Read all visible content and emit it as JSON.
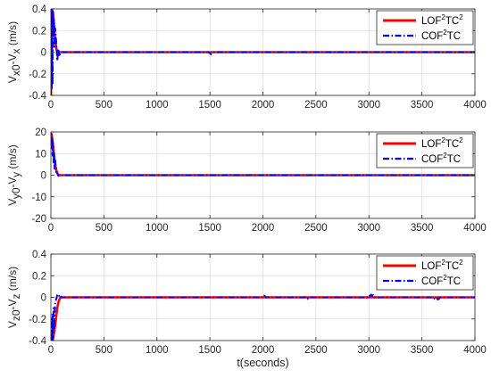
{
  "colors": {
    "lof": "#ff0000",
    "cof": "#0000ff",
    "grid": "#dedede",
    "axis": "#262626"
  },
  "legend": {
    "lof": [
      "LOF",
      "2",
      "TC",
      "2"
    ],
    "cof": [
      "COF",
      "2",
      "TC"
    ]
  },
  "chart_data": [
    {
      "type": "line",
      "ylabel": "V_x0-V_x (m/s)",
      "ylabel_parts": [
        "V",
        "x0",
        "-V",
        "x",
        " (m/s)"
      ],
      "xlim": [
        0,
        4000
      ],
      "ylim": [
        -0.4,
        0.4
      ],
      "xticks": [
        0,
        500,
        1000,
        1500,
        2000,
        2500,
        3000,
        3500,
        4000
      ],
      "yticks": [
        -0.4,
        -0.2,
        0,
        0.2,
        0.4
      ],
      "ytick_labels": [
        "-0.4",
        "-0.2",
        "0",
        "0.2",
        "0.4"
      ],
      "grid": true,
      "legend_position": "top-right",
      "series": [
        {
          "name": "LOF2TC2",
          "style": "solid",
          "x": [
            0,
            3,
            6,
            10,
            15,
            20,
            25,
            30,
            40,
            50,
            60,
            70,
            80,
            100,
            150,
            4000
          ],
          "y": [
            -0.4,
            -0.3,
            0.05,
            0.3,
            0.38,
            0.36,
            0.3,
            0.24,
            0.12,
            0.04,
            0.005,
            -0.005,
            0,
            0,
            0,
            0
          ]
        },
        {
          "name": "COF2TC",
          "style": "dashdot",
          "x": [
            0,
            5,
            8,
            12,
            16,
            20,
            25,
            30,
            35,
            40,
            50,
            60,
            70,
            80,
            90,
            100,
            150,
            1490,
            1500,
            1510,
            1520,
            1530,
            1540,
            4000
          ],
          "y": [
            -0.4,
            0.4,
            -0.35,
            0.4,
            -0.3,
            0.38,
            0.15,
            0.3,
            0.05,
            0.22,
            0.1,
            -0.08,
            0.03,
            -0.04,
            -0.01,
            0,
            0,
            0,
            -0.01,
            -0.02,
            -0.015,
            -0.01,
            0,
            0
          ]
        }
      ]
    },
    {
      "type": "line",
      "ylabel": "V_y0-V_y (m/s)",
      "ylabel_parts": [
        "V",
        "y0",
        "-V",
        "y",
        " (m/s)"
      ],
      "xlim": [
        0,
        4000
      ],
      "ylim": [
        -20,
        20
      ],
      "xticks": [
        0,
        500,
        1000,
        1500,
        2000,
        2500,
        3000,
        3500,
        4000
      ],
      "yticks": [
        -20,
        -10,
        0,
        10,
        20
      ],
      "ytick_labels": [
        "-20",
        "-10",
        "0",
        "10",
        "20"
      ],
      "grid": true,
      "legend_position": "top-right",
      "series": [
        {
          "name": "LOF2TC2",
          "style": "solid",
          "x": [
            0,
            5,
            10,
            15,
            20,
            25,
            30,
            40,
            50,
            60,
            70,
            80,
            100,
            4000
          ],
          "y": [
            19.5,
            19,
            18,
            16,
            14,
            11.5,
            9,
            5,
            2.5,
            1,
            0.2,
            0,
            0,
            0
          ]
        },
        {
          "name": "COF2TC",
          "style": "dashdot",
          "x": [
            0,
            4,
            8,
            12,
            16,
            20,
            25,
            30,
            35,
            40,
            50,
            60,
            70,
            80,
            100,
            4000
          ],
          "y": [
            15,
            19,
            12,
            17,
            9,
            15,
            6,
            11,
            3,
            7,
            1.5,
            1,
            -0.3,
            0,
            0,
            0
          ]
        }
      ]
    },
    {
      "type": "line",
      "ylabel": "V_z0-V_z (m/s)",
      "ylabel_parts": [
        "V",
        "z0",
        "-V",
        "z",
        " (m/s)"
      ],
      "xlabel": "t(seconds)",
      "xlim": [
        0,
        4000
      ],
      "ylim": [
        -0.4,
        0.4
      ],
      "xticks": [
        0,
        500,
        1000,
        1500,
        2000,
        2500,
        3000,
        3500,
        4000
      ],
      "yticks": [
        -0.4,
        -0.2,
        0,
        0.2,
        0.4
      ],
      "ytick_labels": [
        "-0.4",
        "-0.2",
        "0",
        "0.2",
        "0.4"
      ],
      "grid": true,
      "legend_position": "top-right",
      "series": [
        {
          "name": "LOF2TC2",
          "style": "solid",
          "x": [
            0,
            10,
            20,
            30,
            40,
            50,
            60,
            70,
            80,
            90,
            100,
            120,
            4000
          ],
          "y": [
            -0.4,
            -0.4,
            -0.38,
            -0.33,
            -0.26,
            -0.18,
            -0.1,
            -0.05,
            -0.02,
            -0.005,
            0,
            0,
            0
          ]
        },
        {
          "name": "COF2TC",
          "style": "dashdot",
          "x": [
            0,
            5,
            10,
            15,
            20,
            25,
            30,
            40,
            50,
            60,
            70,
            80,
            90,
            100,
            150,
            2000,
            2010,
            2020,
            2030,
            2400,
            2410,
            2420,
            2430,
            2990,
            3000,
            3010,
            3020,
            3030,
            3040,
            3050,
            3610,
            3620,
            3630,
            3640,
            3650,
            3660,
            3670,
            4000
          ],
          "y": [
            -0.4,
            -0.2,
            -0.4,
            -0.15,
            -0.4,
            -0.1,
            -0.3,
            -0.05,
            -0.02,
            0.02,
            0.03,
            0.01,
            0.02,
            0,
            0,
            0,
            0.015,
            0.01,
            0,
            0,
            -0.01,
            -0.015,
            0,
            0,
            0.02,
            0.01,
            0.025,
            0.015,
            0.02,
            0,
            0,
            -0.015,
            -0.02,
            -0.01,
            -0.02,
            -0.015,
            0,
            0
          ]
        }
      ]
    }
  ]
}
